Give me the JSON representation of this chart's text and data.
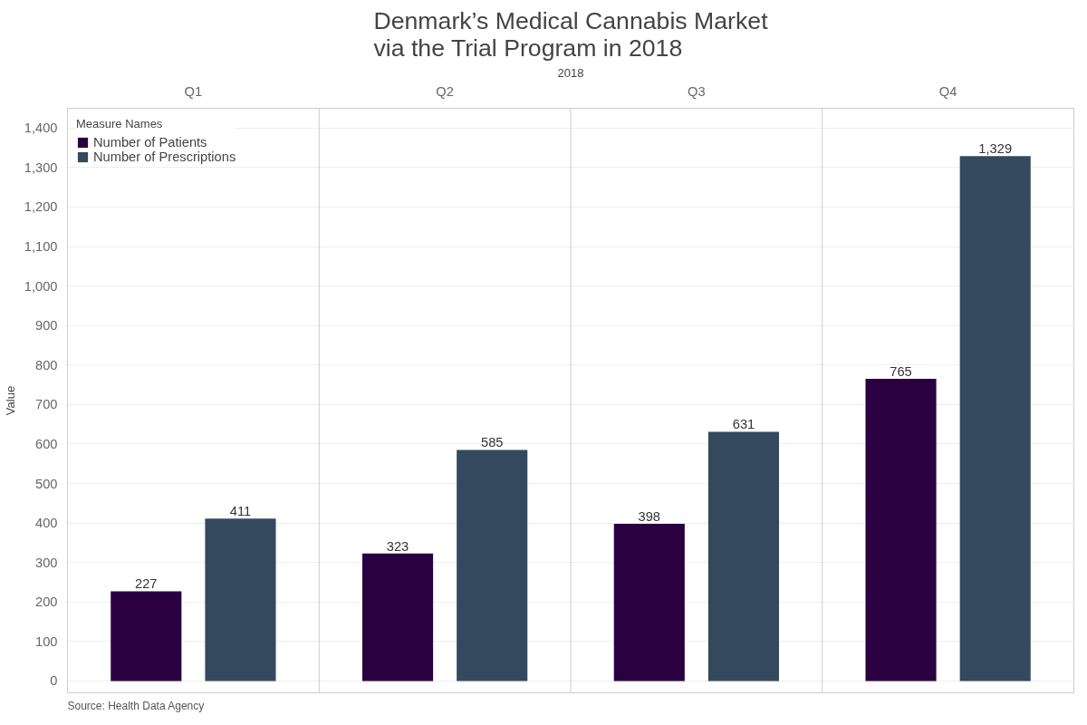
{
  "chart_data": {
    "type": "bar",
    "title": "Denmark’s Medical Cannabis Market\nvia the Trial Program in 2018",
    "xlabel": "2018",
    "ylabel": "Value",
    "legend_title": "Measure Names",
    "categories": [
      "Q1",
      "Q2",
      "Q3",
      "Q4"
    ],
    "series": [
      {
        "name": "Number of Patients",
        "color": "#2a0041",
        "values": [
          227,
          323,
          398,
          765
        ],
        "value_labels": [
          "227",
          "323",
          "398",
          "765"
        ]
      },
      {
        "name": "Number of Prescriptions",
        "color": "#34495e",
        "values": [
          411,
          585,
          631,
          1329
        ],
        "value_labels": [
          "411",
          "585",
          "631",
          "1,329"
        ]
      }
    ],
    "ylim": [
      -30,
      1450
    ],
    "yticks": [
      0,
      100,
      200,
      300,
      400,
      500,
      600,
      700,
      800,
      900,
      {
        "value": 1000,
        "label": "1,000"
      },
      {
        "value": 1100,
        "label": "1,100"
      },
      {
        "value": 1200,
        "label": "1,200"
      },
      {
        "value": 1300,
        "label": "1,300"
      },
      {
        "value": 1400,
        "label": "1,400"
      }
    ],
    "grid": "y",
    "legend": "top left",
    "annotations": [
      "Source: Health Data Agency"
    ]
  }
}
